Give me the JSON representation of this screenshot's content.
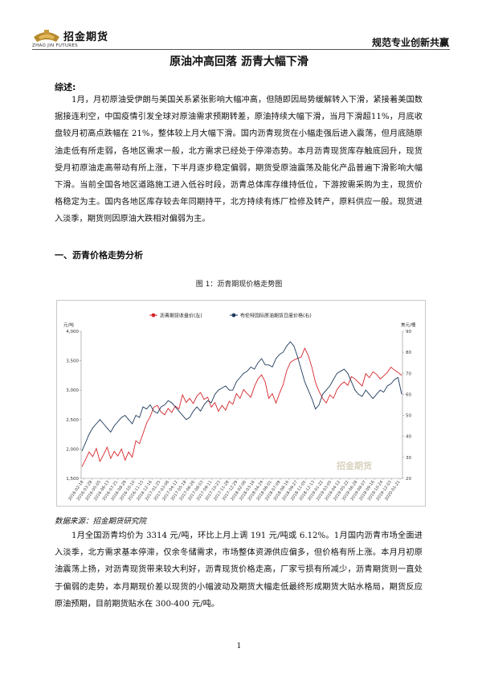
{
  "header": {
    "logo_name": "招金期货",
    "logo_en": "ZHAO JIN FUTURES",
    "slogan": "规范专业创新共赢"
  },
  "title": "原油冲高回落 沥青大幅下滑",
  "summary_label": "综述:",
  "summary_text": "1月，月初原油受伊朗与美国关系紧张影响大幅冲高，但随即因局势缓解转入下滑，紧接着美国数据接连利空，中国疫情引发全球对原油需求预期转差，原油持续大幅下滑，当月下滑超11%，月底收盘较月初高点跌幅在 21%，整体较上月大幅下滑。国内沥青现货在小幅走强后进入震荡，但月底随原油走低有所走弱，各地区需求一般，北方需求已经处于停滞态势。本月沥青现货库存触底回升，现货受月初原油走高带动有所上涨，下半月逐步稳定偏弱，期货受原油震荡及能化产品普遍下滑影响大幅下滑。当前全国各地区道路施工进入低谷时段，沥青总体库存维持低位，下游按需采购为主，现货价格稳定为主。国内各地区库存较去年同期持平，北方持续有炼厂检修及转产，原料供应一般。现货进入淡季，期货则因原油大跌相对偏弱为主。",
  "section1_label": "一、沥青价格走势分析",
  "figure_caption": "图 1：沥青期现价格走势图",
  "source_text": "数据来源：招金期货研究院",
  "body_text": "1月全国沥青均价为 3314 元/吨，环比上月上调 191 元/吨或 6.12%。1月国内沥青市场全面进入淡季，北方需求基本停滞，仅余冬储需求，市场整体资源供应偏多，但价格有所上涨。本月月初原油震荡上扬，对沥青现货带来较大利好，沥青现货价格走高，厂家亏损有所减少，沥青期货则一直处于偏弱的走势，本月期现价差以现货的小幅波动及期货大幅走低最终形成期货大贴水格局，期货反应原油预期，目前期货贴水在 300-400 元/吨。",
  "page_number": "1",
  "chart_data": {
    "type": "line",
    "title": "",
    "y_left_unit": "元/吨",
    "y_right_unit": "美元/桶",
    "ylim_left": [
      1500,
      4000
    ],
    "ylim_right": [
      20,
      90
    ],
    "yticks_left": [
      "1,500",
      "2,000",
      "2,500",
      "3,000",
      "3,500",
      "4,000"
    ],
    "yticks_right": [
      "20",
      "30",
      "40",
      "50",
      "60",
      "70",
      "80",
      "90"
    ],
    "x_ticks": [
      "2016-02-18",
      "2016-03-28",
      "2016-05-05",
      "2016-06-13",
      "2016-07-21",
      "2016-08-29",
      "2016-10-10",
      "2016-11-15",
      "2016-12-16",
      "2017-01-25",
      "2017-03-06",
      "2017-04-12",
      "2017-05-18",
      "2017-06-26",
      "2017-08-03",
      "2017-09-11",
      "2017-10-23",
      "2017-11-28",
      "2017-12-29",
      "2018-02-06",
      "2018-03-16",
      "2018-04-24",
      "2018-06-01",
      "2018-07-09",
      "2018-08-16",
      "2018-09-27",
      "2018-11-05",
      "2018-12-13",
      "2019-01-22",
      "2019-03-05",
      "2019-04-12",
      "2019-05-22",
      "2019-06-28",
      "2019-08-07",
      "2019-09-16",
      "2019-10-24",
      "2019-12-03",
      "2020-01-21"
    ],
    "legend_position": "top",
    "grid": false,
    "watermark": "招金期货",
    "series": [
      {
        "name": "沥青期货收盘价(左)",
        "axis": "left",
        "color": "#d6262b",
        "values": [
          1700,
          1820,
          1950,
          1870,
          2010,
          1790,
          1900,
          2030,
          1840,
          1960,
          1880,
          2000,
          1810,
          1950,
          1860,
          2140,
          2090,
          2260,
          2440,
          2550,
          2710,
          2740,
          2630,
          2580,
          2690,
          2620,
          2730,
          2680,
          2920,
          2790,
          2860,
          2770,
          2900,
          2960,
          2840,
          2880,
          2710,
          2790,
          2640,
          2740,
          2660,
          2810,
          2760,
          2940,
          2860,
          3010,
          2940,
          2880,
          3060,
          3190,
          3260,
          3140,
          2860,
          2940,
          2780,
          2950,
          3090,
          3330,
          3470,
          3510,
          3540,
          3560,
          3710,
          3590,
          3390,
          3130,
          2980,
          2860,
          2780,
          2920,
          2860,
          3010,
          3090,
          3140,
          3080,
          3230,
          3190,
          3130,
          3070,
          3280,
          3210,
          3310,
          3270,
          3190,
          3240,
          3300,
          3390,
          3340,
          3300,
          3250
        ]
      },
      {
        "name": "布伦特国际原油期货日度价格(右)",
        "axis": "right",
        "color": "#1f3a5c",
        "values": [
          33,
          37,
          41,
          44,
          46,
          48,
          46,
          44,
          42,
          45,
          47,
          49,
          50,
          48,
          46,
          50,
          49,
          54,
          53,
          55,
          52,
          51,
          54,
          55,
          57,
          56,
          54,
          52,
          50,
          48,
          49,
          52,
          54,
          52,
          55,
          57,
          56,
          60,
          62,
          63,
          64,
          62,
          62,
          66,
          68,
          70,
          71,
          73,
          72,
          75,
          77,
          74,
          74,
          73,
          77,
          79,
          80,
          83,
          85,
          83,
          78,
          72,
          66,
          62,
          58,
          53,
          55,
          60,
          62,
          64,
          67,
          70,
          71,
          72,
          70,
          66,
          62,
          60,
          59,
          62,
          60,
          58,
          60,
          62,
          61,
          64,
          65,
          67,
          68,
          60
        ]
      }
    ]
  }
}
